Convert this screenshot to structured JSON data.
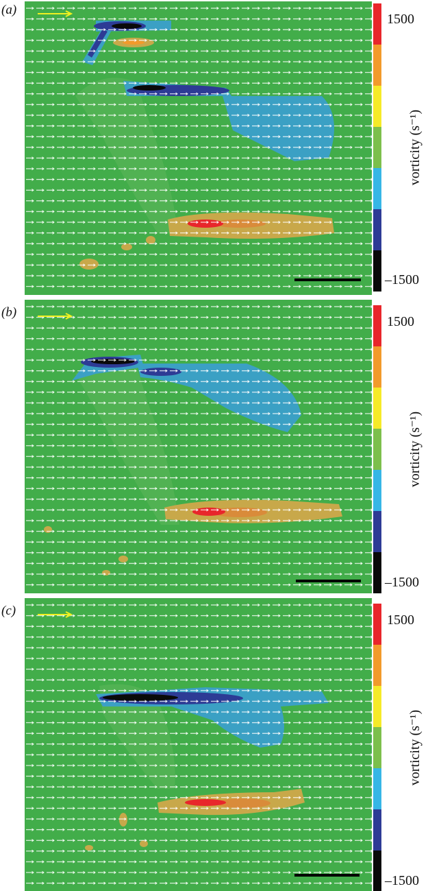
{
  "panels": [
    {
      "label": "(a)",
      "colorbar": {
        "max": "1500",
        "min": "–1500",
        "title": "vorticity (s⁻¹)"
      }
    },
    {
      "label": "(b)",
      "colorbar": {
        "max": "1500",
        "min": "–1500",
        "title": "vorticity (s⁻¹)"
      }
    },
    {
      "label": "(c)",
      "colorbar": {
        "max": "1500",
        "min": "–1500",
        "title": "vorticity (s⁻¹)"
      }
    }
  ]
}
